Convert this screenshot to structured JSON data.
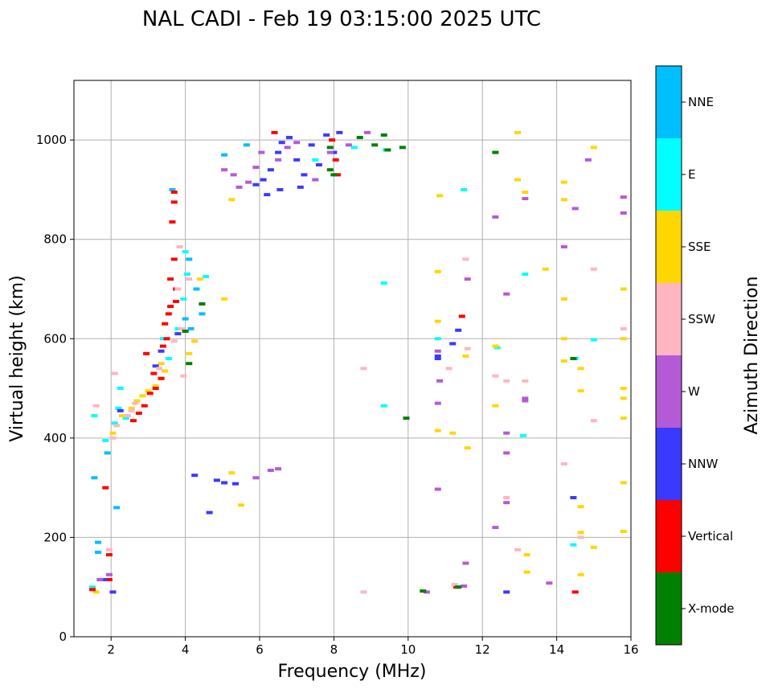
{
  "chart_data": {
    "type": "scatter",
    "title": "NAL CADI - Feb 19 03:15:00 2025 UTC",
    "xlabel": "Frequency (MHz)",
    "ylabel": "Virtual height (km)",
    "xlim": [
      1,
      16
    ],
    "ylim": [
      0,
      1120
    ],
    "x_ticks": [
      2,
      4,
      6,
      8,
      10,
      12,
      14,
      16
    ],
    "y_ticks": [
      0,
      200,
      400,
      600,
      800,
      1000
    ],
    "grid": true,
    "colorbar": {
      "label": "Azimuth Direction",
      "categories": [
        {
          "name": "X-mode",
          "color": "#008000"
        },
        {
          "name": "Vertical",
          "color": "#ff0000"
        },
        {
          "name": "NNW",
          "color": "#3a3aff"
        },
        {
          "name": "W",
          "color": "#b45ad6"
        },
        {
          "name": "SSW",
          "color": "#ffb6c1"
        },
        {
          "name": "SSE",
          "color": "#ffd700"
        },
        {
          "name": "E",
          "color": "#00ffff"
        },
        {
          "name": "NNE",
          "color": "#00bfff"
        }
      ]
    },
    "series": [
      {
        "name": "NNE",
        "color": "#00bfff",
        "points": [
          [
            1.65,
            190
          ],
          [
            1.65,
            170
          ],
          [
            1.55,
            320
          ],
          [
            1.9,
            370
          ],
          [
            2.15,
            260
          ],
          [
            3.65,
            900
          ],
          [
            4.0,
            640
          ],
          [
            4.15,
            620
          ],
          [
            4.45,
            650
          ],
          [
            4.3,
            700
          ],
          [
            4.1,
            760
          ],
          [
            5.05,
            970
          ],
          [
            5.65,
            990
          ]
        ]
      },
      {
        "name": "E",
        "color": "#00ffff",
        "points": [
          [
            1.5,
            100
          ],
          [
            1.7,
            115
          ],
          [
            1.85,
            395
          ],
          [
            1.55,
            445
          ],
          [
            2.1,
            430
          ],
          [
            2.2,
            460
          ],
          [
            2.25,
            500
          ],
          [
            2.4,
            440
          ],
          [
            3.4,
            600
          ],
          [
            3.55,
            560
          ],
          [
            3.8,
            620
          ],
          [
            3.95,
            680
          ],
          [
            4.05,
            730
          ],
          [
            4.0,
            775
          ],
          [
            4.55,
            725
          ],
          [
            7.5,
            960
          ],
          [
            8.55,
            985
          ],
          [
            9.4,
            980
          ],
          [
            9.35,
            712
          ],
          [
            9.35,
            465
          ],
          [
            10.8,
            600
          ],
          [
            11.5,
            900
          ],
          [
            12.4,
            582
          ],
          [
            13.1,
            405
          ],
          [
            13.15,
            730
          ],
          [
            14.45,
            185
          ],
          [
            14.5,
            560
          ],
          [
            15.0,
            598
          ]
        ]
      },
      {
        "name": "SSE",
        "color": "#ffd700",
        "points": [
          [
            1.6,
            90
          ],
          [
            2.05,
            410
          ],
          [
            2.3,
            445
          ],
          [
            2.55,
            460
          ],
          [
            2.7,
            475
          ],
          [
            2.85,
            485
          ],
          [
            3.0,
            495
          ],
          [
            3.2,
            505
          ],
          [
            3.35,
            520
          ],
          [
            3.45,
            535
          ],
          [
            3.35,
            550
          ],
          [
            4.1,
            570
          ],
          [
            4.25,
            595
          ],
          [
            4.4,
            720
          ],
          [
            5.05,
            680
          ],
          [
            5.25,
            880
          ],
          [
            5.5,
            265
          ],
          [
            5.25,
            330
          ],
          [
            10.8,
            735
          ],
          [
            10.8,
            415
          ],
          [
            10.8,
            635
          ],
          [
            10.85,
            888
          ],
          [
            11.2,
            410
          ],
          [
            11.55,
            565
          ],
          [
            11.6,
            380
          ],
          [
            12.35,
            465
          ],
          [
            12.35,
            585
          ],
          [
            12.95,
            1015
          ],
          [
            12.95,
            920
          ],
          [
            13.15,
            895
          ],
          [
            13.2,
            165
          ],
          [
            13.2,
            130
          ],
          [
            13.7,
            740
          ],
          [
            14.2,
            880
          ],
          [
            14.2,
            600
          ],
          [
            14.2,
            555
          ],
          [
            14.2,
            680
          ],
          [
            14.2,
            915
          ],
          [
            14.65,
            495
          ],
          [
            14.65,
            540
          ],
          [
            14.65,
            262
          ],
          [
            14.65,
            125
          ],
          [
            14.65,
            210
          ],
          [
            15.0,
            985
          ],
          [
            15.0,
            180
          ],
          [
            15.8,
            885
          ],
          [
            15.8,
            700
          ],
          [
            15.8,
            600
          ],
          [
            15.8,
            500
          ],
          [
            15.8,
            480
          ],
          [
            15.8,
            440
          ],
          [
            15.8,
            310
          ],
          [
            15.8,
            212
          ]
        ]
      },
      {
        "name": "Vertical",
        "color": "#ff0000",
        "points": [
          [
            1.5,
            95
          ],
          [
            1.95,
            115
          ],
          [
            1.95,
            165
          ],
          [
            1.85,
            300
          ],
          [
            2.6,
            435
          ],
          [
            2.75,
            450
          ],
          [
            2.9,
            465
          ],
          [
            3.05,
            490
          ],
          [
            3.2,
            500
          ],
          [
            3.35,
            520
          ],
          [
            3.15,
            530
          ],
          [
            2.95,
            570
          ],
          [
            3.4,
            585
          ],
          [
            3.5,
            600
          ],
          [
            3.45,
            630
          ],
          [
            3.55,
            650
          ],
          [
            3.6,
            665
          ],
          [
            3.75,
            675
          ],
          [
            3.75,
            700
          ],
          [
            3.6,
            720
          ],
          [
            3.7,
            760
          ],
          [
            3.65,
            835
          ],
          [
            3.7,
            875
          ],
          [
            3.7,
            895
          ],
          [
            8.1,
            930
          ],
          [
            8.05,
            960
          ],
          [
            7.95,
            1000
          ],
          [
            6.4,
            1015
          ],
          [
            11.45,
            645
          ],
          [
            14.5,
            90
          ],
          [
            11.3,
            100
          ]
        ]
      },
      {
        "name": "NNW",
        "color": "#3a3aff",
        "points": [
          [
            1.8,
            115
          ],
          [
            2.05,
            90
          ],
          [
            2.25,
            455
          ],
          [
            3.2,
            545
          ],
          [
            3.35,
            575
          ],
          [
            3.8,
            610
          ],
          [
            4.25,
            325
          ],
          [
            4.65,
            250
          ],
          [
            4.85,
            315
          ],
          [
            5.05,
            310
          ],
          [
            5.35,
            308
          ],
          [
            5.9,
            910
          ],
          [
            6.1,
            920
          ],
          [
            6.3,
            940
          ],
          [
            6.5,
            975
          ],
          [
            6.6,
            995
          ],
          [
            6.8,
            1005
          ],
          [
            7.0,
            960
          ],
          [
            7.2,
            930
          ],
          [
            7.4,
            990
          ],
          [
            7.6,
            950
          ],
          [
            7.8,
            1010
          ],
          [
            8.0,
            975
          ],
          [
            6.2,
            890
          ],
          [
            6.55,
            900
          ],
          [
            7.1,
            905
          ],
          [
            8.15,
            1015
          ],
          [
            10.8,
            560
          ],
          [
            10.8,
            565
          ],
          [
            11.2,
            590
          ],
          [
            11.35,
            617
          ],
          [
            12.65,
            90
          ],
          [
            14.45,
            280
          ]
        ]
      },
      {
        "name": "W",
        "color": "#b45ad6",
        "points": [
          [
            1.7,
            115
          ],
          [
            1.95,
            125
          ],
          [
            5.05,
            940
          ],
          [
            5.3,
            930
          ],
          [
            5.45,
            905
          ],
          [
            5.7,
            915
          ],
          [
            5.9,
            945
          ],
          [
            6.05,
            975
          ],
          [
            6.5,
            960
          ],
          [
            6.75,
            985
          ],
          [
            7.0,
            995
          ],
          [
            7.5,
            920
          ],
          [
            7.9,
            975
          ],
          [
            8.4,
            990
          ],
          [
            8.9,
            1015
          ],
          [
            5.9,
            320
          ],
          [
            6.3,
            335
          ],
          [
            6.5,
            338
          ],
          [
            10.5,
            90
          ],
          [
            10.8,
            297
          ],
          [
            10.8,
            470
          ],
          [
            10.85,
            515
          ],
          [
            10.8,
            575
          ],
          [
            11.5,
            102
          ],
          [
            11.55,
            148
          ],
          [
            11.6,
            720
          ],
          [
            12.35,
            220
          ],
          [
            12.35,
            845
          ],
          [
            12.65,
            690
          ],
          [
            12.65,
            410
          ],
          [
            12.65,
            370
          ],
          [
            12.65,
            270
          ],
          [
            13.15,
            480
          ],
          [
            13.15,
            475
          ],
          [
            13.15,
            882
          ],
          [
            13.8,
            108
          ],
          [
            14.2,
            785
          ],
          [
            14.5,
            862
          ],
          [
            14.85,
            960
          ],
          [
            15.8,
            885
          ],
          [
            15.8,
            853
          ]
        ]
      },
      {
        "name": "SSW",
        "color": "#ffb6c1",
        "points": [
          [
            1.6,
            465
          ],
          [
            1.95,
            175
          ],
          [
            2.05,
            400
          ],
          [
            2.1,
            530
          ],
          [
            2.15,
            425
          ],
          [
            2.45,
            445
          ],
          [
            2.55,
            455
          ],
          [
            2.65,
            470
          ],
          [
            3.3,
            540
          ],
          [
            3.7,
            595
          ],
          [
            3.9,
            620
          ],
          [
            3.8,
            700
          ],
          [
            3.85,
            785
          ],
          [
            3.95,
            525
          ],
          [
            4.1,
            720
          ],
          [
            8.8,
            90
          ],
          [
            8.8,
            540
          ],
          [
            11.1,
            540
          ],
          [
            11.25,
            105
          ],
          [
            11.55,
            760
          ],
          [
            11.6,
            580
          ],
          [
            12.35,
            525
          ],
          [
            12.65,
            515
          ],
          [
            12.65,
            280
          ],
          [
            12.95,
            175
          ],
          [
            13.15,
            515
          ],
          [
            14.2,
            348
          ],
          [
            14.65,
            200
          ],
          [
            15.0,
            740
          ],
          [
            15.0,
            435
          ],
          [
            15.8,
            620
          ]
        ]
      },
      {
        "name": "X-mode",
        "color": "#008000",
        "points": [
          [
            4.45,
            670
          ],
          [
            4.1,
            550
          ],
          [
            4.0,
            615
          ],
          [
            7.9,
            985
          ],
          [
            8.7,
            1005
          ],
          [
            9.35,
            1010
          ],
          [
            9.1,
            990
          ],
          [
            9.45,
            980
          ],
          [
            9.85,
            985
          ],
          [
            9.95,
            440
          ],
          [
            10.4,
            92
          ],
          [
            11.35,
            100
          ],
          [
            12.35,
            975
          ],
          [
            14.45,
            560
          ],
          [
            8.0,
            930
          ],
          [
            7.9,
            940
          ]
        ]
      }
    ]
  }
}
